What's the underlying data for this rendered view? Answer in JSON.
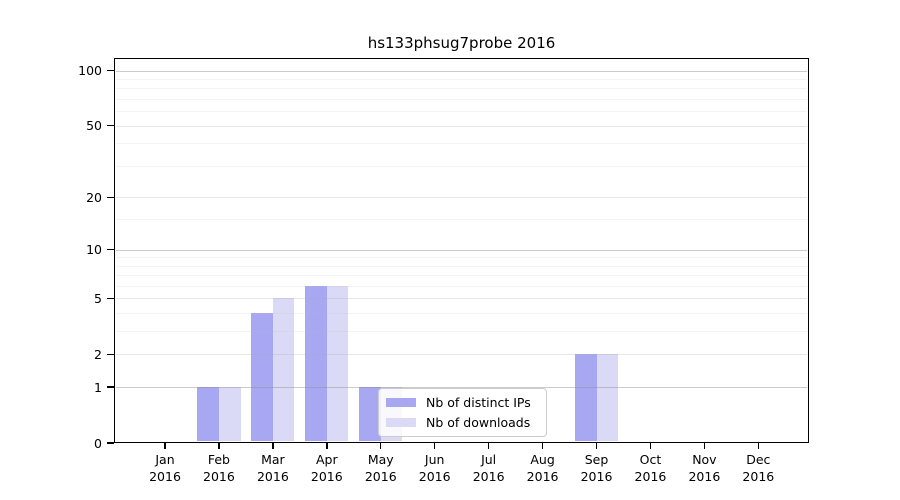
{
  "chart_data": {
    "type": "bar",
    "title": "hs133phsug7probe 2016",
    "x_year": "2016",
    "categories": [
      "Jan",
      "Feb",
      "Mar",
      "Apr",
      "May",
      "Jun",
      "Jul",
      "Aug",
      "Sep",
      "Oct",
      "Nov",
      "Dec"
    ],
    "series": [
      {
        "name": "Nb of distinct IPs",
        "color": "#a8a8f2",
        "values": [
          0,
          1,
          4,
          6,
          1,
          0,
          0,
          0,
          2,
          0,
          0,
          0
        ]
      },
      {
        "name": "Nb of downloads",
        "color": "#dadaf6",
        "values": [
          0,
          1,
          5,
          6,
          1,
          0,
          0,
          0,
          2,
          0,
          0,
          0
        ]
      }
    ],
    "yscale": "log1p",
    "ylim": [
      0,
      117
    ],
    "yticks": [
      0,
      1,
      2,
      5,
      10,
      20,
      50,
      100
    ],
    "gridlines": {
      "major": [
        1,
        10,
        100
      ],
      "mid": [
        2,
        5,
        20,
        50
      ],
      "minor": [
        3,
        4,
        6,
        7,
        8,
        9,
        15,
        30,
        40,
        60,
        70,
        80,
        90
      ]
    },
    "grid_colors": {
      "major": "rgba(140,140,140,0.45)",
      "mid": "rgba(170,170,170,0.28)",
      "minor": "rgba(190,190,190,0.18)"
    },
    "legend": {
      "position": "lower-center"
    }
  }
}
